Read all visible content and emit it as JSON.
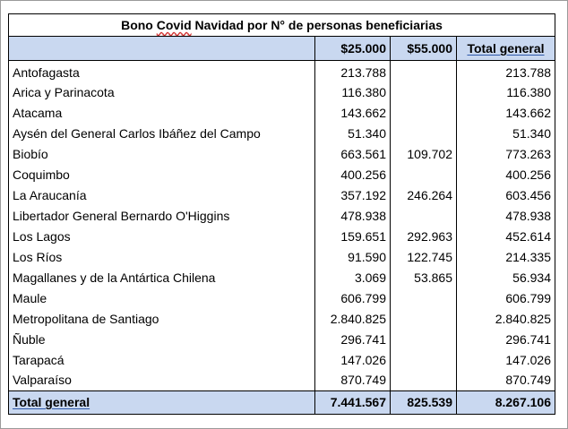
{
  "table": {
    "title_prefix": "Bono ",
    "title_misspelled": "Covid",
    "title_suffix": " Navidad por N° de personas beneficiarias",
    "headers": [
      "",
      "$25.000",
      "$55.000",
      "Total general"
    ],
    "rows": [
      {
        "region": "Antofagasta",
        "v25": "213.788",
        "v55": "",
        "total": "213.788"
      },
      {
        "region": "Arica y Parinacota",
        "v25": "116.380",
        "v55": "",
        "total": "116.380"
      },
      {
        "region": "Atacama",
        "v25": "143.662",
        "v55": "",
        "total": "143.662"
      },
      {
        "region": "Aysén del General Carlos Ibáñez del Campo",
        "v25": "51.340",
        "v55": "",
        "total": "51.340"
      },
      {
        "region": "Biobío",
        "v25": "663.561",
        "v55": "109.702",
        "total": "773.263"
      },
      {
        "region": "Coquimbo",
        "v25": "400.256",
        "v55": "",
        "total": "400.256"
      },
      {
        "region": "La Araucanía",
        "v25": "357.192",
        "v55": "246.264",
        "total": "603.456"
      },
      {
        "region": "Libertador General Bernardo O'Higgins",
        "v25": "478.938",
        "v55": "",
        "total": "478.938"
      },
      {
        "region": "Los Lagos",
        "v25": "159.651",
        "v55": "292.963",
        "total": "452.614"
      },
      {
        "region": "Los Ríos",
        "v25": "91.590",
        "v55": "122.745",
        "total": "214.335"
      },
      {
        "region": "Magallanes y de la Antártica Chilena",
        "v25": "3.069",
        "v55": "53.865",
        "total": "56.934"
      },
      {
        "region": "Maule",
        "v25": "606.799",
        "v55": "",
        "total": "606.799"
      },
      {
        "region": "Metropolitana de Santiago",
        "v25": "2.840.825",
        "v55": "",
        "total": "2.840.825"
      },
      {
        "region": "Ñuble",
        "v25": "296.741",
        "v55": "",
        "total": "296.741"
      },
      {
        "region": "Tarapacá",
        "v25": "147.026",
        "v55": "",
        "total": "147.026"
      },
      {
        "region": "Valparaíso",
        "v25": "870.749",
        "v55": "",
        "total": "870.749"
      }
    ],
    "footer": {
      "label": "Total general",
      "v25": "7.441.567",
      "v55": "825.539",
      "total": "8.267.106"
    }
  }
}
